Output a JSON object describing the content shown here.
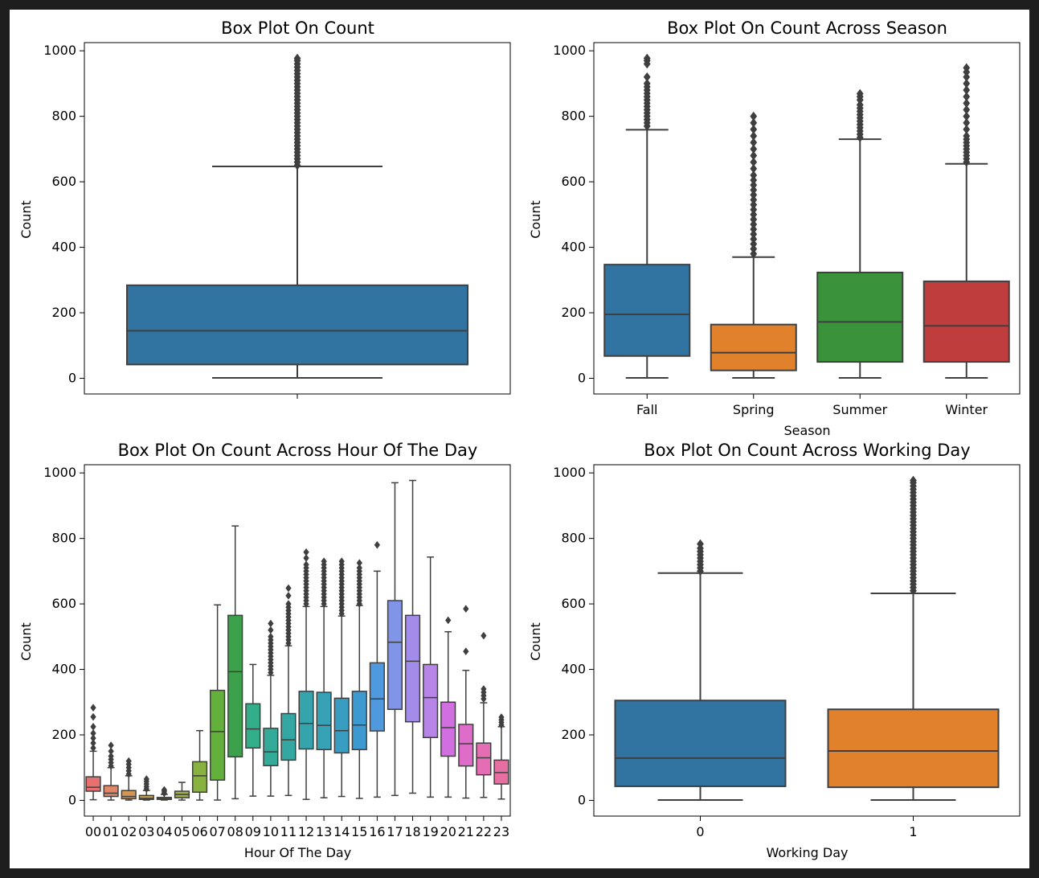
{
  "chart_data": [
    {
      "type": "box",
      "title": "Box Plot On Count",
      "xlabel": "",
      "ylabel": "Count",
      "ylim": [
        -48,
        1025
      ],
      "yticks": [
        0,
        200,
        400,
        600,
        800,
        1000
      ],
      "categories": [
        ""
      ],
      "boxes": [
        {
          "color": "#3274a1",
          "whislo": 1,
          "q1": 42,
          "med": 145,
          "q3": 284,
          "whishi": 647,
          "fliers": [
            650,
            660,
            670,
            680,
            690,
            700,
            710,
            720,
            730,
            740,
            750,
            760,
            770,
            780,
            790,
            800,
            810,
            820,
            830,
            840,
            850,
            860,
            870,
            880,
            890,
            900,
            910,
            920,
            930,
            940,
            950,
            960,
            970,
            977
          ]
        }
      ]
    },
    {
      "type": "box",
      "title": "Box Plot On Count Across Season",
      "xlabel": "Season",
      "ylabel": "Count",
      "ylim": [
        -48,
        1025
      ],
      "yticks": [
        0,
        200,
        400,
        600,
        800,
        1000
      ],
      "categories": [
        "Fall",
        "Spring",
        "Summer",
        "Winter"
      ],
      "boxes": [
        {
          "color": "#3274a1",
          "whislo": 1,
          "q1": 68,
          "med": 195,
          "q3": 347,
          "whishi": 759,
          "fliers": [
            770,
            780,
            790,
            800,
            810,
            820,
            830,
            840,
            850,
            860,
            870,
            880,
            890,
            900,
            920,
            960,
            970,
            977
          ]
        },
        {
          "color": "#e1812c",
          "whislo": 1,
          "q1": 24,
          "med": 78,
          "q3": 164,
          "whishi": 370,
          "fliers": [
            380,
            395,
            410,
            425,
            440,
            455,
            470,
            485,
            500,
            515,
            530,
            545,
            560,
            575,
            590,
            605,
            620,
            640,
            660,
            680,
            700,
            720,
            740,
            760,
            780,
            800
          ]
        },
        {
          "color": "#3a923a",
          "whislo": 1,
          "q1": 50,
          "med": 172,
          "q3": 323,
          "whishi": 730,
          "fliers": [
            735,
            745,
            755,
            765,
            775,
            785,
            795,
            805,
            815,
            825,
            835,
            850,
            860,
            869
          ]
        },
        {
          "color": "#c03d3e",
          "whislo": 1,
          "q1": 50,
          "med": 160,
          "q3": 296,
          "whishi": 655,
          "fliers": [
            660,
            670,
            680,
            690,
            700,
            710,
            720,
            730,
            740,
            760,
            780,
            800,
            820,
            840,
            860,
            880,
            900,
            920,
            935,
            948
          ]
        }
      ]
    },
    {
      "type": "box",
      "title": "Box Plot On Count Across Hour Of The Day",
      "xlabel": "Hour Of The Day",
      "ylabel": "Count",
      "ylim": [
        -48,
        1025
      ],
      "yticks": [
        0,
        200,
        400,
        600,
        800,
        1000
      ],
      "categories": [
        "00",
        "01",
        "02",
        "03",
        "04",
        "05",
        "06",
        "07",
        "08",
        "09",
        "10",
        "11",
        "12",
        "13",
        "14",
        "15",
        "16",
        "17",
        "18",
        "19",
        "20",
        "21",
        "22",
        "23"
      ],
      "boxes": [
        {
          "color": "#e8706f",
          "whislo": 2,
          "q1": 28,
          "med": 40,
          "q3": 72,
          "whishi": 150,
          "fliers": [
            160,
            175,
            190,
            205,
            225,
            255,
            283
          ]
        },
        {
          "color": "#e0876a",
          "whislo": 1,
          "q1": 12,
          "med": 22,
          "q3": 45,
          "whishi": 100,
          "fliers": [
            105,
            115,
            125,
            135,
            150,
            168
          ]
        },
        {
          "color": "#d19655",
          "whislo": 1,
          "q1": 5,
          "med": 12,
          "q3": 30,
          "whishi": 75,
          "fliers": [
            80,
            90,
            100,
            110,
            120
          ]
        },
        {
          "color": "#c0a040",
          "whislo": 1,
          "q1": 3,
          "med": 6,
          "q3": 15,
          "whishi": 30,
          "fliers": [
            35,
            42,
            50,
            58,
            65
          ]
        },
        {
          "color": "#b0a840",
          "whislo": 1,
          "q1": 3,
          "med": 5,
          "q3": 9,
          "whishi": 18,
          "fliers": [
            22,
            28,
            32
          ]
        },
        {
          "color": "#9fae44",
          "whislo": 1,
          "q1": 8,
          "med": 18,
          "q3": 28,
          "whishi": 55,
          "fliers": []
        },
        {
          "color": "#87b23d",
          "whislo": 1,
          "q1": 25,
          "med": 75,
          "q3": 118,
          "whishi": 213,
          "fliers": []
        },
        {
          "color": "#64b03c",
          "whislo": 1,
          "q1": 62,
          "med": 210,
          "q3": 336,
          "whishi": 597,
          "fliers": []
        },
        {
          "color": "#3ba24b",
          "whislo": 5,
          "q1": 133,
          "med": 393,
          "q3": 565,
          "whishi": 838,
          "fliers": []
        },
        {
          "color": "#33ae8a",
          "whislo": 13,
          "q1": 160,
          "med": 218,
          "q3": 295,
          "whishi": 415,
          "fliers": []
        },
        {
          "color": "#34aa98",
          "whislo": 13,
          "q1": 106,
          "med": 148,
          "q3": 220,
          "whishi": 382,
          "fliers": [
            390,
            400,
            410,
            420,
            430,
            440,
            450,
            460,
            470,
            480,
            490,
            500,
            520,
            540
          ]
        },
        {
          "color": "#35a7a3",
          "whislo": 15,
          "q1": 123,
          "med": 185,
          "q3": 265,
          "whishi": 472,
          "fliers": [
            480,
            490,
            500,
            510,
            520,
            530,
            540,
            550,
            560,
            570,
            580,
            590,
            600,
            625,
            648
          ]
        },
        {
          "color": "#36a4ad",
          "whislo": 3,
          "q1": 157,
          "med": 235,
          "q3": 333,
          "whishi": 592,
          "fliers": [
            600,
            610,
            620,
            630,
            640,
            650,
            660,
            670,
            680,
            690,
            700,
            710,
            720,
            740,
            758
          ]
        },
        {
          "color": "#37a1b6",
          "whislo": 8,
          "q1": 155,
          "med": 229,
          "q3": 330,
          "whishi": 592,
          "fliers": [
            600,
            610,
            620,
            630,
            640,
            650,
            660,
            670,
            680,
            690,
            700,
            710,
            720,
            730
          ]
        },
        {
          "color": "#399dc2",
          "whislo": 12,
          "q1": 145,
          "med": 213,
          "q3": 312,
          "whishi": 563,
          "fliers": [
            570,
            580,
            590,
            600,
            610,
            620,
            630,
            640,
            650,
            660,
            670,
            680,
            690,
            700,
            710,
            720,
            730
          ]
        },
        {
          "color": "#3d99cf",
          "whislo": 6,
          "q1": 155,
          "med": 230,
          "q3": 333,
          "whishi": 595,
          "fliers": [
            600,
            610,
            620,
            630,
            640,
            650,
            660,
            670,
            680,
            690,
            700,
            710,
            725
          ]
        },
        {
          "color": "#5199de",
          "whislo": 10,
          "q1": 212,
          "med": 310,
          "q3": 420,
          "whishi": 700,
          "fliers": [
            780
          ]
        },
        {
          "color": "#8094e8",
          "whislo": 15,
          "q1": 278,
          "med": 483,
          "q3": 610,
          "whishi": 970,
          "fliers": []
        },
        {
          "color": "#a38be9",
          "whislo": 22,
          "q1": 240,
          "med": 425,
          "q3": 565,
          "whishi": 977,
          "fliers": []
        },
        {
          "color": "#b784e8",
          "whislo": 10,
          "q1": 192,
          "med": 314,
          "q3": 415,
          "whishi": 743,
          "fliers": []
        },
        {
          "color": "#d16ee0",
          "whislo": 10,
          "q1": 135,
          "med": 222,
          "q3": 300,
          "whishi": 515,
          "fliers": [
            550
          ]
        },
        {
          "color": "#dd6dc8",
          "whislo": 7,
          "q1": 105,
          "med": 173,
          "q3": 232,
          "whishi": 397,
          "fliers": [
            455,
            585
          ]
        },
        {
          "color": "#e56db4",
          "whislo": 9,
          "q1": 78,
          "med": 130,
          "q3": 175,
          "whishi": 298,
          "fliers": [
            310,
            320,
            330,
            340,
            503
          ]
        },
        {
          "color": "#e66ea1",
          "whislo": 4,
          "q1": 50,
          "med": 85,
          "q3": 123,
          "whishi": 225,
          "fliers": [
            230,
            238,
            246,
            254
          ]
        }
      ]
    },
    {
      "type": "box",
      "title": "Box Plot On Count Across Working Day",
      "xlabel": "Working Day",
      "ylabel": "Count",
      "ylim": [
        -48,
        1025
      ],
      "yticks": [
        0,
        200,
        400,
        600,
        800,
        1000
      ],
      "categories": [
        "0",
        "1"
      ],
      "boxes": [
        {
          "color": "#3274a1",
          "whislo": 1,
          "q1": 43,
          "med": 129,
          "q3": 305,
          "whishi": 694,
          "fliers": [
            700,
            710,
            720,
            730,
            740,
            750,
            760,
            770,
            783
          ]
        },
        {
          "color": "#e1812c",
          "whislo": 1,
          "q1": 40,
          "med": 151,
          "q3": 278,
          "whishi": 632,
          "fliers": [
            640,
            650,
            660,
            670,
            680,
            690,
            700,
            710,
            720,
            730,
            740,
            750,
            760,
            770,
            780,
            790,
            800,
            810,
            820,
            830,
            840,
            850,
            860,
            870,
            880,
            890,
            900,
            910,
            920,
            930,
            940,
            950,
            960,
            970,
            977
          ]
        }
      ]
    }
  ]
}
